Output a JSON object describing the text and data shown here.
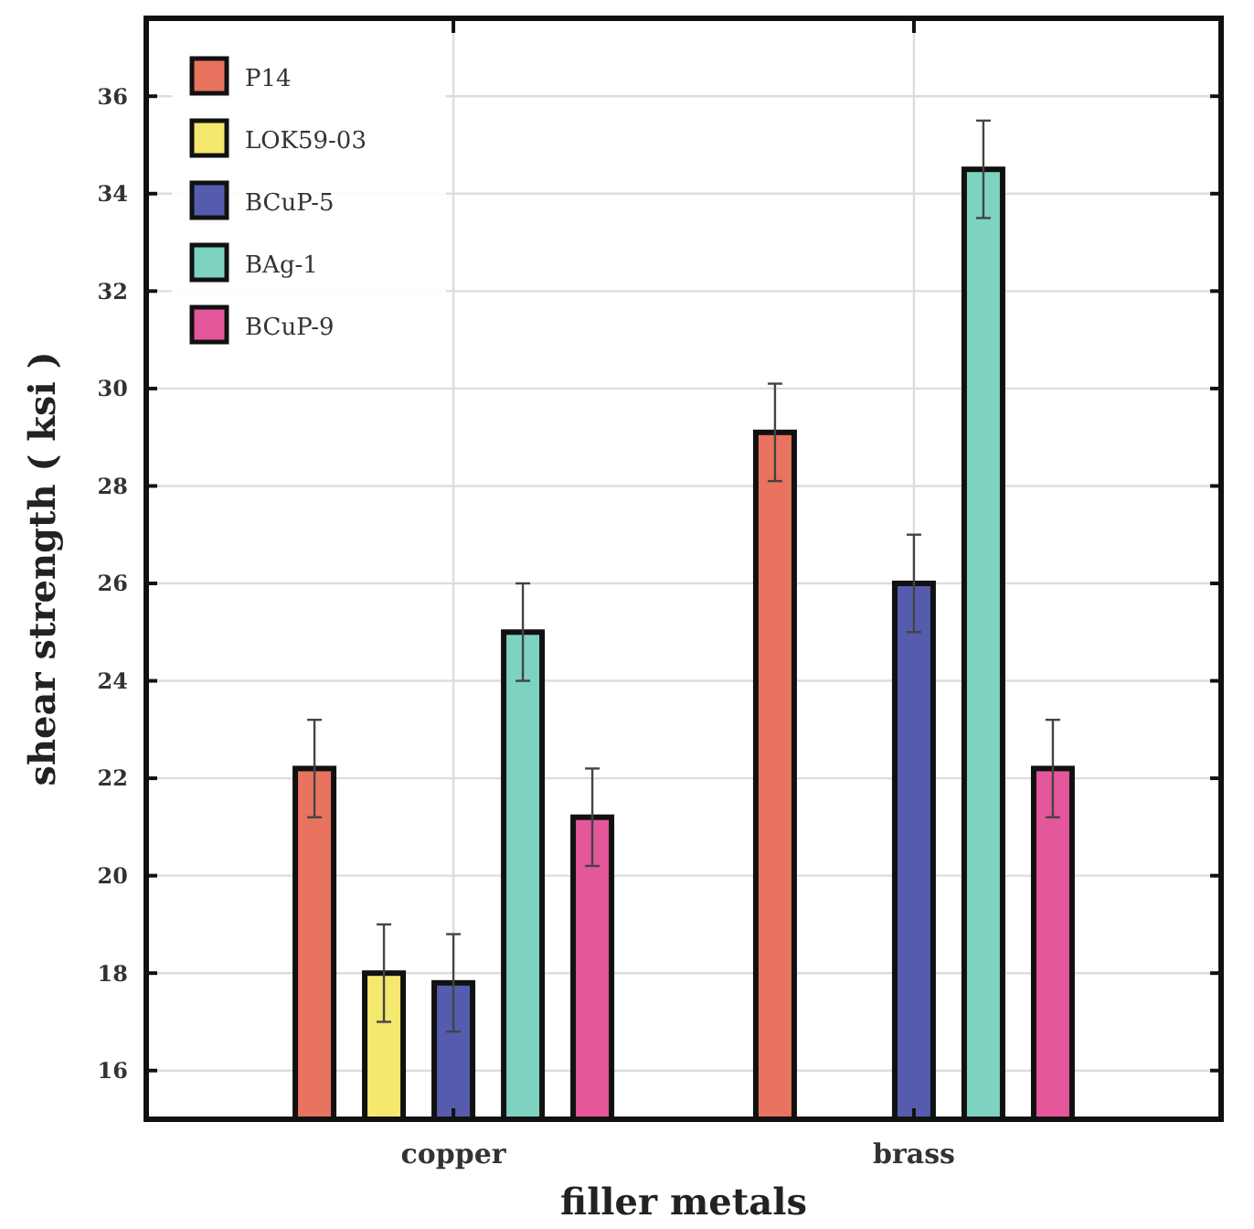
{
  "chart_data": {
    "type": "bar",
    "xlabel": "filler metals",
    "ylabel": "shear strength ( ksi )",
    "categories": [
      "copper",
      "brass"
    ],
    "series": [
      {
        "name": "P14",
        "color": "#e8735f",
        "values": [
          22.2,
          29.1
        ],
        "errors": [
          1,
          1
        ]
      },
      {
        "name": "LOK59-03",
        "color": "#f5e86e",
        "values": [
          18.0,
          null
        ],
        "errors": [
          1,
          null
        ]
      },
      {
        "name": "BCuP-5",
        "color": "#555cad",
        "values": [
          17.8,
          26.0
        ],
        "errors": [
          1,
          1
        ]
      },
      {
        "name": "BAg-1",
        "color": "#7dd3c0",
        "values": [
          25.0,
          34.5
        ],
        "errors": [
          1,
          1
        ]
      },
      {
        "name": "BCuP-9",
        "color": "#e4579a",
        "values": [
          21.2,
          22.2
        ],
        "errors": [
          1,
          1
        ]
      }
    ],
    "ylim": [
      15,
      37.6
    ],
    "yticks": [
      16,
      18,
      20,
      22,
      24,
      26,
      28,
      30,
      32,
      34,
      36
    ],
    "grid": true,
    "legend": "top left"
  }
}
